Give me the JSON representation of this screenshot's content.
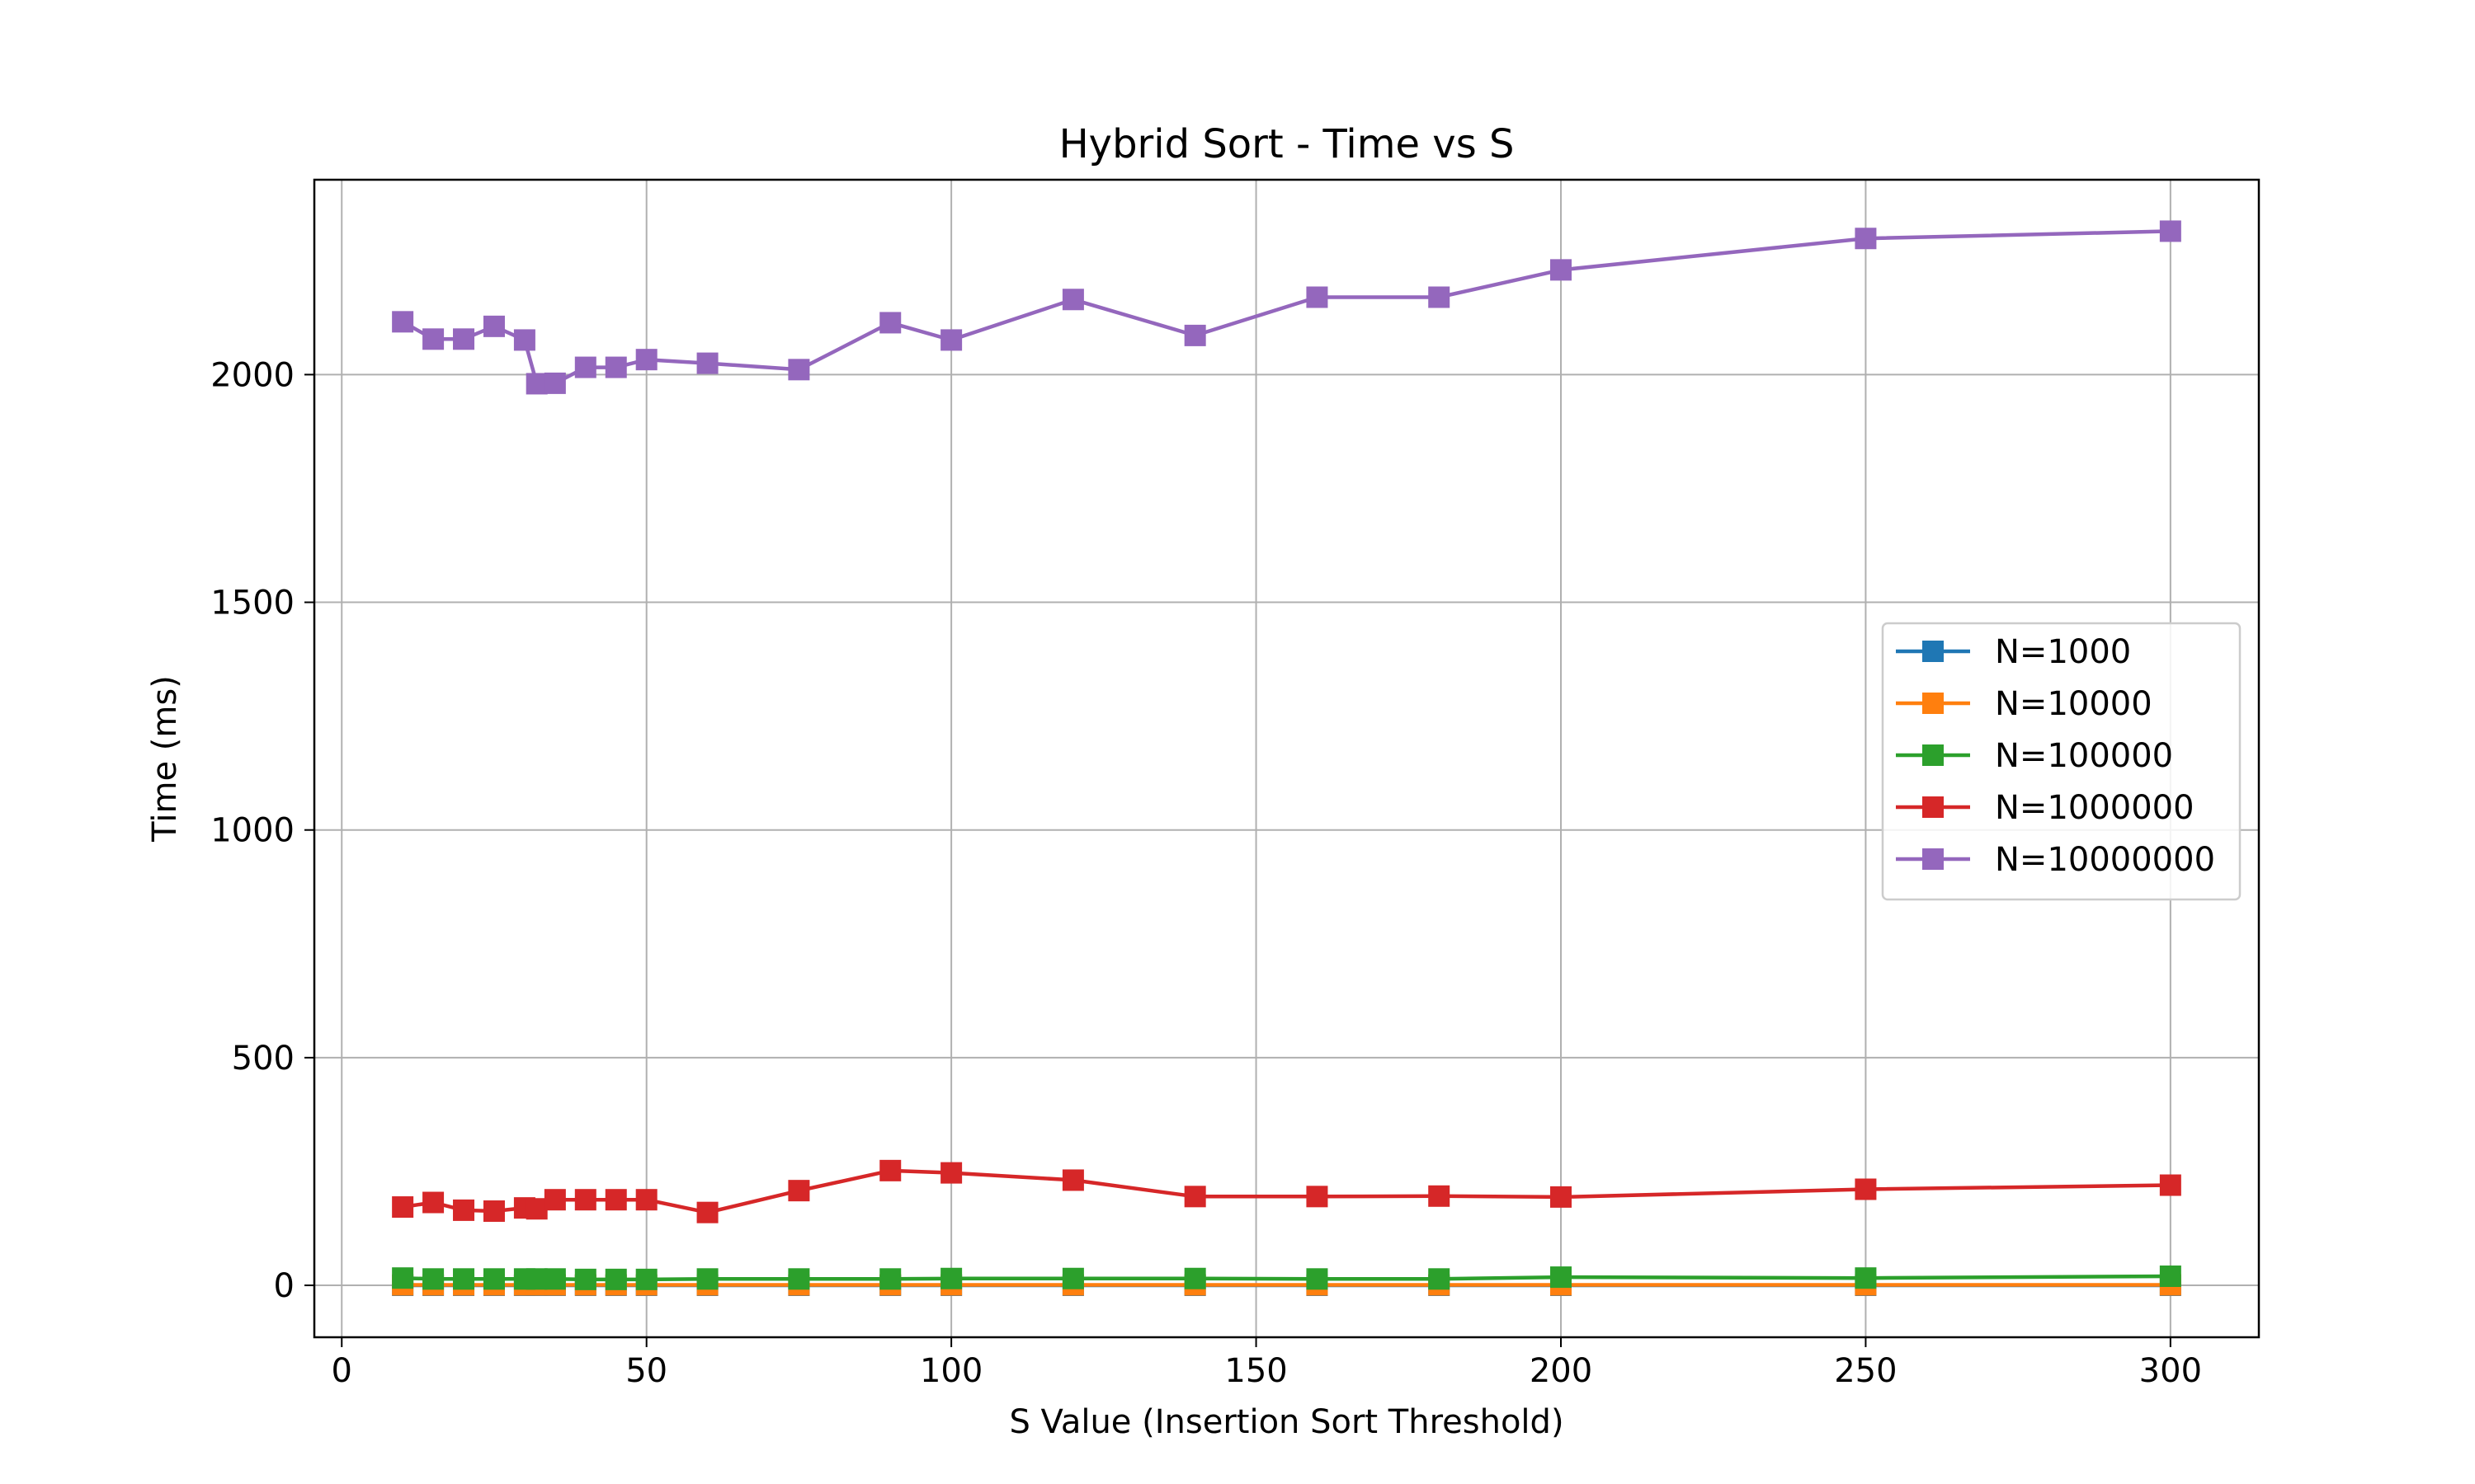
{
  "chart_data": {
    "type": "line",
    "title": "Hybrid Sort - Time vs S",
    "xlabel": "S Value (Insertion Sort Threshold)",
    "ylabel": "Time (ms)",
    "xlim": [
      -4.5,
      314.5
    ],
    "ylim": [
      -114,
      2428
    ],
    "xticks": [
      0,
      50,
      100,
      150,
      200,
      250,
      300
    ],
    "yticks": [
      0,
      500,
      1000,
      1500,
      2000
    ],
    "grid": true,
    "legend_position": "center-right",
    "marker": "square",
    "x": [
      10,
      15,
      20,
      25,
      30,
      32,
      35,
      40,
      45,
      50,
      60,
      75,
      90,
      100,
      120,
      140,
      160,
      180,
      200,
      250,
      300
    ],
    "series": [
      {
        "name": "N=1000",
        "color": "#1f77b4",
        "values": [
          0.1,
          0.1,
          0.1,
          0.1,
          0.1,
          0.1,
          0.1,
          0.1,
          0.1,
          0.1,
          0.1,
          0.1,
          0.1,
          0.1,
          0.1,
          0.1,
          0.1,
          0.1,
          0.1,
          0.1,
          0.1
        ]
      },
      {
        "name": "N=10000",
        "color": "#ff7f0e",
        "values": [
          1,
          1,
          1,
          1,
          1,
          1,
          1,
          1,
          1,
          1,
          1,
          1,
          1,
          1,
          1,
          1,
          1,
          1,
          1,
          1,
          1
        ]
      },
      {
        "name": "N=100000",
        "color": "#2ca02c",
        "values": [
          16,
          14,
          14,
          14,
          14,
          14,
          14,
          13,
          13,
          13,
          14,
          14,
          14,
          15,
          15,
          15,
          14,
          14,
          18,
          16,
          20
        ]
      },
      {
        "name": "N=1000000",
        "color": "#d62728",
        "values": [
          172,
          182,
          165,
          163,
          170,
          168,
          188,
          188,
          188,
          188,
          160,
          208,
          252,
          247,
          231,
          195,
          195,
          196,
          194,
          211,
          220
        ]
      },
      {
        "name": "N=10000000",
        "color": "#9467bd",
        "values": [
          2116,
          2078,
          2078,
          2106,
          2076,
          1980,
          1981,
          2016,
          2016,
          2033,
          2025,
          2011,
          2114,
          2076,
          2165,
          2086,
          2170,
          2170,
          2230,
          2299,
          2315
        ]
      }
    ]
  }
}
